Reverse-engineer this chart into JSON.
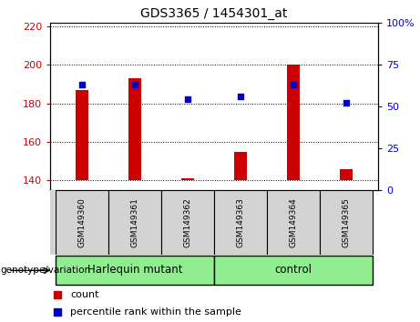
{
  "title": "GDS3365 / 1454301_at",
  "samples": [
    "GSM149360",
    "GSM149361",
    "GSM149362",
    "GSM149363",
    "GSM149364",
    "GSM149365"
  ],
  "count_values": [
    187,
    193,
    141,
    155,
    200,
    146
  ],
  "percentile_values": [
    63,
    63,
    54,
    56,
    63,
    52
  ],
  "ylim_left": [
    135,
    222
  ],
  "ylim_right": [
    0,
    100
  ],
  "yticks_left": [
    140,
    160,
    180,
    200,
    220
  ],
  "yticks_right": [
    0,
    25,
    50,
    75,
    100
  ],
  "ytick_labels_right": [
    "0",
    "25",
    "50",
    "75",
    "100%"
  ],
  "bar_color": "#cc0000",
  "scatter_color": "#0000cc",
  "groups": [
    {
      "label": "Harlequin mutant",
      "start": 0,
      "end": 2,
      "color": "#90ee90"
    },
    {
      "label": "control",
      "start": 3,
      "end": 5,
      "color": "#90ee90"
    }
  ],
  "legend_count_label": "count",
  "legend_percentile_label": "percentile rank within the sample",
  "genotype_label": "genotype/variation",
  "axis_color_left": "#cc0000",
  "axis_color_right": "#0000cc",
  "sample_box_color": "#d3d3d3",
  "bar_width": 0.25
}
